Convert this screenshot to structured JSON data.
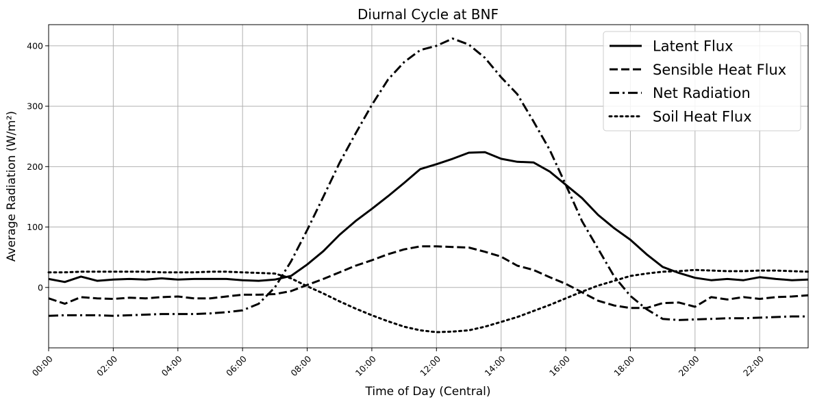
{
  "chart_data": {
    "type": "line",
    "title": "Diurnal Cycle at BNF",
    "xlabel": "Time of Day (Central)",
    "ylabel": "Average Radiation (W/m²)",
    "xlim": [
      0,
      23.5
    ],
    "ylim": [
      -100,
      435
    ],
    "xticks": [
      0,
      2,
      4,
      6,
      8,
      10,
      12,
      14,
      16,
      18,
      20,
      22
    ],
    "xtick_labels": [
      "00:00",
      "02:00",
      "04:00",
      "06:00",
      "08:00",
      "10:00",
      "12:00",
      "14:00",
      "16:00",
      "18:00",
      "20:00",
      "22:00"
    ],
    "yticks": [
      0,
      100,
      200,
      300,
      400
    ],
    "ytick_labels": [
      "0",
      "100",
      "200",
      "300",
      "400"
    ],
    "grid": true,
    "legend_position": "top-right",
    "x": [
      0,
      0.5,
      1,
      1.5,
      2,
      2.5,
      3,
      3.5,
      4,
      4.5,
      5,
      5.5,
      6,
      6.5,
      7,
      7.5,
      8,
      8.5,
      9,
      9.5,
      10,
      10.5,
      11,
      11.5,
      12,
      12.5,
      13,
      13.5,
      14,
      14.5,
      15,
      15.5,
      16,
      16.5,
      17,
      17.5,
      18,
      18.5,
      19,
      19.5,
      20,
      20.5,
      21,
      21.5,
      22,
      22.5,
      23,
      23.5
    ],
    "series": [
      {
        "name": "Latent Flux",
        "dash": "solid",
        "color": "#000000",
        "values": [
          14,
          9,
          18,
          11,
          13,
          14,
          13,
          15,
          13,
          14,
          14,
          14,
          12,
          11,
          13,
          19,
          38,
          60,
          87,
          110,
          130,
          151,
          173,
          196,
          204,
          213,
          223,
          224,
          213,
          208,
          207,
          192,
          170,
          148,
          120,
          98,
          79,
          55,
          34,
          24,
          16,
          12,
          14,
          12,
          17,
          14,
          12,
          13
        ]
      },
      {
        "name": "Sensible Heat Flux",
        "dash": "dashed",
        "color": "#000000",
        "values": [
          -18,
          -27,
          -16,
          -18,
          -19,
          -17,
          -18,
          -16,
          -15,
          -18,
          -18,
          -15,
          -12,
          -12,
          -11,
          -6,
          4,
          14,
          25,
          36,
          45,
          55,
          63,
          68,
          68,
          67,
          66,
          59,
          51,
          36,
          29,
          17,
          6,
          -8,
          -22,
          -30,
          -34,
          -34,
          -26,
          -25,
          -32,
          -16,
          -20,
          -16,
          -19,
          -16,
          -15,
          -13
        ]
      },
      {
        "name": "Net Radiation",
        "dash": "dashdot",
        "color": "#000000",
        "values": [
          -47,
          -46,
          -46,
          -46,
          -47,
          -46,
          -45,
          -44,
          -44,
          -44,
          -43,
          -41,
          -38,
          -27,
          0,
          43,
          95,
          150,
          206,
          255,
          302,
          344,
          373,
          393,
          400,
          412,
          402,
          380,
          348,
          320,
          275,
          228,
          170,
          110,
          64,
          18,
          -14,
          -36,
          -52,
          -54,
          -53,
          -52,
          -51,
          -51,
          -50,
          -49,
          -48,
          -48
        ]
      },
      {
        "name": "Soil Heat Flux",
        "dash": "dotted",
        "color": "#000000",
        "values": [
          25,
          25,
          26,
          26,
          26,
          26,
          26,
          25,
          25,
          25,
          26,
          26,
          25,
          24,
          23,
          15,
          2,
          -10,
          -23,
          -35,
          -46,
          -56,
          -65,
          -71,
          -74,
          -73,
          -71,
          -65,
          -57,
          -49,
          -39,
          -29,
          -18,
          -7,
          3,
          11,
          19,
          23,
          26,
          27,
          29,
          28,
          27,
          27,
          28,
          28,
          27,
          26
        ]
      }
    ]
  }
}
